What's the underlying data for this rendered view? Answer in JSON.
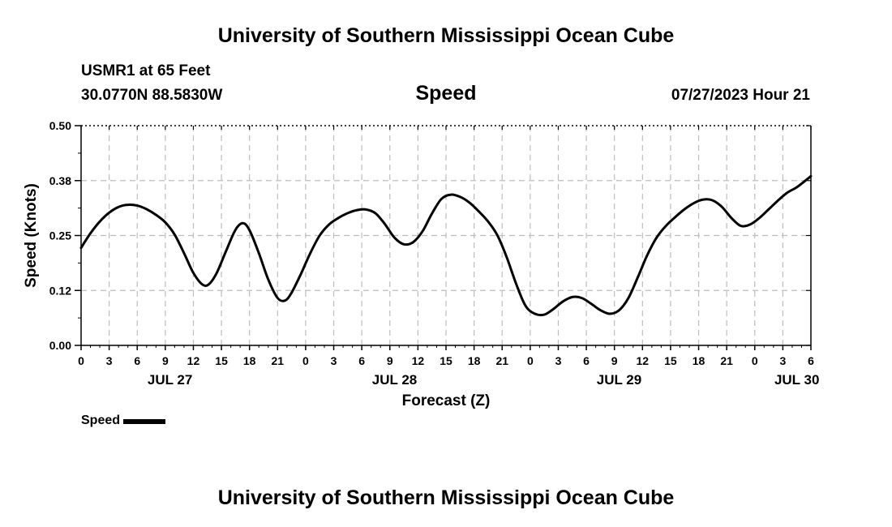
{
  "header": {
    "title": "University of Southern Mississippi Ocean Cube",
    "station": "USMR1 at 65 Feet",
    "coordinates": "30.0770N  88.5830W",
    "variable": "Speed",
    "datetime": "07/27/2023 Hour 21"
  },
  "footer": {
    "title": "University of Southern Mississippi Ocean Cube"
  },
  "legend": {
    "label": "Speed"
  },
  "chart_data": {
    "type": "line",
    "title": "Speed",
    "xlabel": "Forecast (Z)",
    "ylabel": "Speed (Knots)",
    "ylim": [
      0,
      0.5
    ],
    "xlim_hours": [
      0,
      78
    ],
    "x_unit": "hours since JUL 27 00Z",
    "grid": true,
    "legend_position": "bottom-left",
    "y_ticks": [
      0.0,
      0.125,
      0.25,
      0.375,
      0.5
    ],
    "y_tick_labels": [
      "0.00",
      "0.12",
      "0.25",
      "0.38",
      "0.50"
    ],
    "x_ticks": [
      0,
      3,
      6,
      9,
      12,
      15,
      18,
      21,
      24,
      27,
      30,
      33,
      36,
      39,
      42,
      45,
      48,
      51,
      54,
      57,
      60,
      63,
      66,
      69,
      72,
      75,
      78
    ],
    "x_tick_labels": [
      "0",
      "3",
      "6",
      "9",
      "12",
      "15",
      "18",
      "21",
      "0",
      "3",
      "6",
      "9",
      "12",
      "15",
      "18",
      "21",
      "0",
      "3",
      "6",
      "9",
      "12",
      "15",
      "18",
      "21",
      "0",
      "3",
      "6"
    ],
    "day_labels": [
      {
        "hour": 9.5,
        "label": "JUL 27"
      },
      {
        "hour": 33.5,
        "label": "JUL 28"
      },
      {
        "hour": 57.5,
        "label": "JUL 29"
      },
      {
        "hour": 76.5,
        "label": "JUL 30"
      }
    ],
    "series": [
      {
        "name": "Speed",
        "color": "#000000",
        "x": [
          0,
          1,
          2,
          3,
          4,
          5,
          6,
          7,
          8,
          9,
          10,
          11,
          12,
          13,
          13.7,
          14.5,
          15.5,
          16.5,
          17.3,
          18,
          19,
          20,
          21,
          21.8,
          22.5,
          23.5,
          24.5,
          25.5,
          26.5,
          27.5,
          28.5,
          29.5,
          30.5,
          31.5,
          32.5,
          33.5,
          34.5,
          35.5,
          36.5,
          37.5,
          38.5,
          39.5,
          40.5,
          41.5,
          42.5,
          43.5,
          44.5,
          45.5,
          46.5,
          47.5,
          48.5,
          49.5,
          50.5,
          51.5,
          52.5,
          53.5,
          54.5,
          55.5,
          56.5,
          57.5,
          58.5,
          59.5,
          60.5,
          61.5,
          62.5,
          63.5,
          64.5,
          65.5,
          66.5,
          67.5,
          68.5,
          69.5,
          70.5,
          71.5,
          72.5,
          73.5,
          74.5,
          75.5,
          76.5,
          78
        ],
        "values": [
          0.222,
          0.255,
          0.282,
          0.302,
          0.315,
          0.32,
          0.318,
          0.31,
          0.297,
          0.28,
          0.252,
          0.21,
          0.165,
          0.138,
          0.14,
          0.165,
          0.215,
          0.263,
          0.278,
          0.262,
          0.21,
          0.15,
          0.108,
          0.102,
          0.12,
          0.163,
          0.21,
          0.25,
          0.275,
          0.29,
          0.301,
          0.308,
          0.309,
          0.3,
          0.275,
          0.245,
          0.23,
          0.235,
          0.26,
          0.3,
          0.333,
          0.343,
          0.338,
          0.325,
          0.305,
          0.282,
          0.25,
          0.2,
          0.14,
          0.09,
          0.072,
          0.07,
          0.083,
          0.1,
          0.11,
          0.108,
          0.095,
          0.08,
          0.072,
          0.08,
          0.108,
          0.155,
          0.205,
          0.245,
          0.272,
          0.292,
          0.31,
          0.324,
          0.332,
          0.33,
          0.315,
          0.29,
          0.272,
          0.275,
          0.29,
          0.31,
          0.33,
          0.348,
          0.36,
          0.385
        ]
      }
    ]
  }
}
